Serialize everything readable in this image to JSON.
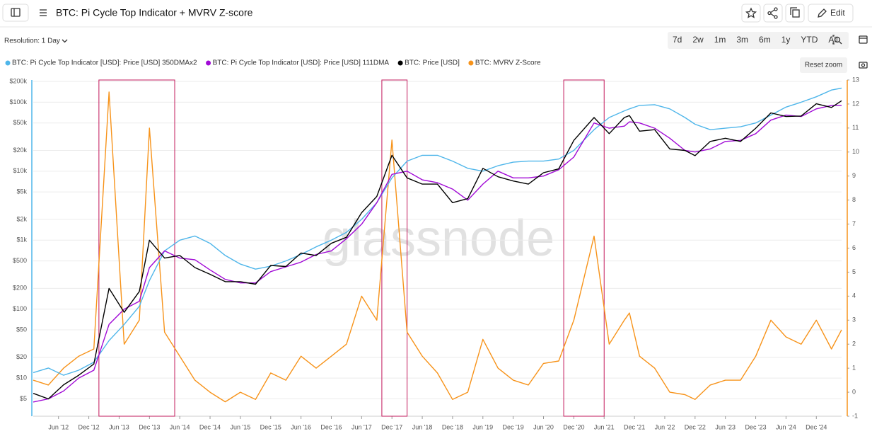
{
  "header": {
    "title": "BTC: Pi Cycle Top Indicator + MVRV Z-score",
    "edit": "Edit"
  },
  "toolbar": {
    "resolution": "Resolution: 1 Day",
    "ranges": [
      "7d",
      "2w",
      "1m",
      "3m",
      "6m",
      "1y",
      "YTD",
      "All"
    ],
    "reset_zoom": "Reset zoom"
  },
  "watermark": "glassnode",
  "chart_data": {
    "type": "line",
    "log_y": true,
    "grid": true,
    "x": [
      "2012-01",
      "2012-04",
      "2012-07",
      "2012-10",
      "2013-01",
      "2013-04",
      "2013-07",
      "2013-10",
      "2013-12",
      "2014-03",
      "2014-06",
      "2014-09",
      "2014-12",
      "2015-03",
      "2015-06",
      "2015-09",
      "2015-12",
      "2016-03",
      "2016-06",
      "2016-09",
      "2016-12",
      "2017-03",
      "2017-06",
      "2017-09",
      "2017-12",
      "2018-03",
      "2018-06",
      "2018-09",
      "2018-12",
      "2019-03",
      "2019-06",
      "2019-09",
      "2019-12",
      "2020-03",
      "2020-06",
      "2020-09",
      "2020-12",
      "2021-04",
      "2021-07",
      "2021-10",
      "2021-11",
      "2022-01",
      "2022-04",
      "2022-07",
      "2022-10",
      "2022-12",
      "2023-03",
      "2023-06",
      "2023-09",
      "2023-12",
      "2024-03",
      "2024-06",
      "2024-09",
      "2024-12",
      "2025-03",
      "2025-05"
    ],
    "xlim": [
      "2012-01",
      "2025-05"
    ],
    "xticks": [
      {
        "value": "2012-06",
        "label": "Jun '12"
      },
      {
        "value": "2012-12",
        "label": "Dec '12"
      },
      {
        "value": "2013-06",
        "label": "Jun '13"
      },
      {
        "value": "2013-12",
        "label": "Dec '13"
      },
      {
        "value": "2014-06",
        "label": "Jun '14"
      },
      {
        "value": "2014-12",
        "label": "Dec '14"
      },
      {
        "value": "2015-06",
        "label": "Jun '15"
      },
      {
        "value": "2015-12",
        "label": "Dec '15"
      },
      {
        "value": "2016-06",
        "label": "Jun '16"
      },
      {
        "value": "2016-12",
        "label": "Dec '16"
      },
      {
        "value": "2017-06",
        "label": "Jun '17"
      },
      {
        "value": "2017-12",
        "label": "Dec '17"
      },
      {
        "value": "2018-06",
        "label": "Jun '18"
      },
      {
        "value": "2018-12",
        "label": "Dec '18"
      },
      {
        "value": "2019-06",
        "label": "Jun '19"
      },
      {
        "value": "2019-12",
        "label": "Dec '19"
      },
      {
        "value": "2020-06",
        "label": "Jun '20"
      },
      {
        "value": "2020-12",
        "label": "Dec '20"
      },
      {
        "value": "2021-06",
        "label": "Jun '21"
      },
      {
        "value": "2021-12",
        "label": "Dec '21"
      },
      {
        "value": "2022-06",
        "label": "Jun '22"
      },
      {
        "value": "2022-12",
        "label": "Dec '22"
      },
      {
        "value": "2023-06",
        "label": "Jun '23"
      },
      {
        "value": "2023-12",
        "label": "Dec '23"
      },
      {
        "value": "2024-06",
        "label": "Jun '24"
      },
      {
        "value": "2024-12",
        "label": "Dec '24"
      }
    ],
    "ylim": [
      2.8,
      210000
    ],
    "yticks": [
      {
        "value": 5,
        "label": "$5"
      },
      {
        "value": 10,
        "label": "$10"
      },
      {
        "value": 20,
        "label": "$20"
      },
      {
        "value": 50,
        "label": "$50"
      },
      {
        "value": 100,
        "label": "$100"
      },
      {
        "value": 200,
        "label": "$200"
      },
      {
        "value": 500,
        "label": "$500"
      },
      {
        "value": 1000,
        "label": "$1k"
      },
      {
        "value": 2000,
        "label": "$2k"
      },
      {
        "value": 5000,
        "label": "$5k"
      },
      {
        "value": 10000,
        "label": "$10k"
      },
      {
        "value": 20000,
        "label": "$20k"
      },
      {
        "value": 50000,
        "label": "$50k"
      },
      {
        "value": 100000,
        "label": "$100k"
      },
      {
        "value": 200000,
        "label": "$200k"
      }
    ],
    "y2lim": [
      -1,
      13
    ],
    "y2ticks": [
      -1,
      0,
      1,
      2,
      3,
      4,
      5,
      6,
      7,
      8,
      9,
      10,
      11,
      12,
      13
    ],
    "highlights": [
      {
        "start": "2013-02",
        "end": "2014-05"
      },
      {
        "start": "2017-10",
        "end": "2018-03"
      },
      {
        "start": "2020-10",
        "end": "2021-06"
      }
    ],
    "highlight_color": "#c2185b",
    "series": [
      {
        "name": "BTC: Pi Cycle Top Indicator [USD]: Price [USD] 350DMAx2",
        "color": "#4fb6ea",
        "values": [
          12,
          14,
          11,
          13,
          17,
          35,
          60,
          110,
          260,
          700,
          1000,
          1150,
          900,
          600,
          450,
          380,
          420,
          500,
          620,
          800,
          1000,
          1300,
          2000,
          3500,
          8000,
          14000,
          17000,
          17000,
          14000,
          11000,
          10000,
          12000,
          13500,
          14000,
          14000,
          15000,
          20000,
          40000,
          60000,
          75000,
          80000,
          90000,
          92000,
          80000,
          60000,
          48000,
          40000,
          42000,
          44000,
          50000,
          65000,
          85000,
          100000,
          120000,
          150000,
          160000
        ]
      },
      {
        "name": "BTC: Pi Cycle Top Indicator [USD]: Price [USD] 111DMA",
        "color": "#a10ad6",
        "values": [
          4.5,
          5,
          6.5,
          10,
          13,
          60,
          100,
          130,
          400,
          700,
          550,
          520,
          370,
          270,
          240,
          240,
          350,
          410,
          480,
          620,
          700,
          1050,
          1700,
          3500,
          9000,
          10000,
          7500,
          6800,
          5500,
          3800,
          6500,
          10000,
          8000,
          8000,
          8500,
          10500,
          16000,
          50000,
          42000,
          45000,
          52000,
          50000,
          42000,
          30000,
          20000,
          19000,
          21000,
          27000,
          28000,
          35000,
          55000,
          65000,
          62000,
          80000,
          90000,
          90000
        ]
      },
      {
        "name": "BTC: Price [USD]",
        "color": "#000000",
        "values": [
          6,
          5,
          8,
          11,
          16,
          200,
          90,
          180,
          1000,
          550,
          600,
          400,
          320,
          250,
          250,
          230,
          430,
          415,
          650,
          600,
          900,
          1100,
          2500,
          4300,
          17000,
          8000,
          6500,
          6500,
          3500,
          4000,
          11000,
          8300,
          7200,
          6500,
          9500,
          10800,
          28000,
          60000,
          35000,
          60000,
          64000,
          38000,
          40000,
          21000,
          20000,
          16800,
          27000,
          30000,
          27000,
          42000,
          70000,
          62000,
          63000,
          95000,
          84000,
          105000
        ]
      },
      {
        "name": "BTC: MVRV Z-Score",
        "color": "#f7931a",
        "axis": "y2",
        "values": [
          0.5,
          0.3,
          1,
          1.5,
          1.8,
          12.5,
          2,
          3,
          11,
          2.5,
          1.5,
          0.5,
          0,
          -0.4,
          0,
          -0.3,
          0.8,
          0.5,
          1.5,
          1,
          1.5,
          2,
          4,
          3,
          10.5,
          2.5,
          1.5,
          0.8,
          -0.3,
          0,
          2.2,
          1,
          0.5,
          0.3,
          1.2,
          1.3,
          3,
          6.5,
          2,
          3,
          3.3,
          1.5,
          1,
          0,
          -0.1,
          -0.3,
          0.3,
          0.5,
          0.5,
          1.5,
          3,
          2.3,
          2,
          3,
          1.8,
          2.6
        ]
      }
    ]
  }
}
